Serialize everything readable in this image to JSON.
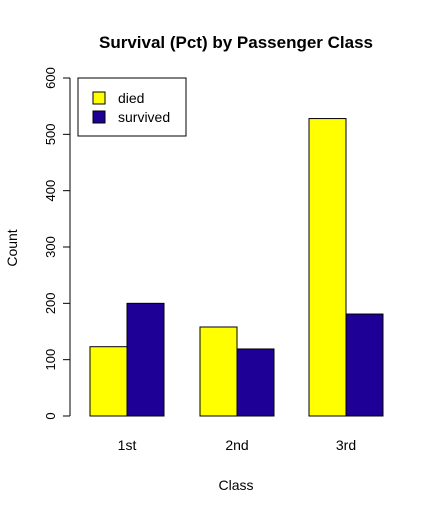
{
  "chart_data": {
    "type": "bar",
    "title": "Survival (Pct) by Passenger Class",
    "xlabel": "Class",
    "ylabel": "Count",
    "categories": [
      "1st",
      "2nd",
      "3rd"
    ],
    "series": [
      {
        "name": "died",
        "color": "#ffff00",
        "values": [
          123,
          158,
          528
        ]
      },
      {
        "name": "survived",
        "color": "#1e0096",
        "values": [
          200,
          119,
          181
        ]
      }
    ],
    "ylim": [
      0,
      600
    ],
    "yticks": [
      0,
      100,
      200,
      300,
      400,
      500,
      600
    ],
    "grid": false,
    "legend": "top-left",
    "stacked": false
  }
}
